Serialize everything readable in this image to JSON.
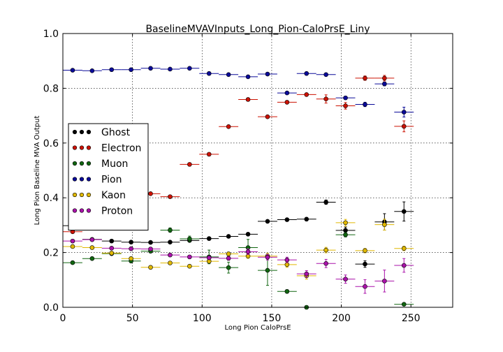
{
  "chart_data": {
    "type": "scatter",
    "title": "BaselineMVAVInputs_Long_Pion-CaloPrsE_Liny",
    "xlabel": "Long Pion CaloPrsE",
    "ylabel": "Long Pion Baseline MVA Output",
    "xlim": [
      0,
      280
    ],
    "ylim": [
      0,
      1
    ],
    "x_ticks": [
      "0",
      "50",
      "100",
      "150",
      "200",
      "250"
    ],
    "x_tick_values": [
      0,
      50,
      100,
      150,
      200,
      250
    ],
    "y_ticks": [
      "0.0",
      "0.2",
      "0.4",
      "0.6",
      "0.8",
      "1.0"
    ],
    "y_tick_values": [
      0,
      0.2,
      0.4,
      0.6,
      0.8,
      1.0
    ],
    "grid": true,
    "legend_position": "center-left",
    "x_bin_half_width": 7,
    "series": [
      {
        "name": "Ghost",
        "color": "#000000",
        "points": [
          {
            "x": 7,
            "y": 0.298,
            "err": 0.004
          },
          {
            "x": 21,
            "y": 0.248,
            "err": 0.003
          },
          {
            "x": 35,
            "y": 0.242,
            "err": 0.003
          },
          {
            "x": 49,
            "y": 0.238,
            "err": 0.003
          },
          {
            "x": 63,
            "y": 0.237,
            "err": 0.003
          },
          {
            "x": 77,
            "y": 0.238,
            "err": 0.003
          },
          {
            "x": 91,
            "y": 0.244,
            "err": 0.003
          },
          {
            "x": 105,
            "y": 0.251,
            "err": 0.003
          },
          {
            "x": 119,
            "y": 0.259,
            "err": 0.003
          },
          {
            "x": 133,
            "y": 0.267,
            "err": 0.004
          },
          {
            "x": 147,
            "y": 0.314,
            "err": 0.004
          },
          {
            "x": 161,
            "y": 0.32,
            "err": 0.005
          },
          {
            "x": 175,
            "y": 0.322,
            "err": 0.006
          },
          {
            "x": 189,
            "y": 0.384,
            "err": 0.008
          },
          {
            "x": 203,
            "y": 0.281,
            "err": 0.012
          },
          {
            "x": 217,
            "y": 0.158,
            "err": 0.012
          },
          {
            "x": 231,
            "y": 0.312,
            "err": 0.03
          },
          {
            "x": 245,
            "y": 0.35,
            "err": 0.035
          }
        ]
      },
      {
        "name": "Electron",
        "color": "#cc1100",
        "points": [
          {
            "x": 7,
            "y": 0.276,
            "err": 0.004
          },
          {
            "x": 21,
            "y": 0.317,
            "err": 0.004
          },
          {
            "x": 35,
            "y": 0.358,
            "err": 0.004
          },
          {
            "x": 49,
            "y": 0.388,
            "err": 0.004
          },
          {
            "x": 63,
            "y": 0.415,
            "err": 0.004
          },
          {
            "x": 77,
            "y": 0.404,
            "err": 0.004
          },
          {
            "x": 91,
            "y": 0.522,
            "err": 0.004
          },
          {
            "x": 105,
            "y": 0.559,
            "err": 0.004
          },
          {
            "x": 119,
            "y": 0.66,
            "err": 0.004
          },
          {
            "x": 133,
            "y": 0.759,
            "err": 0.004
          },
          {
            "x": 147,
            "y": 0.696,
            "err": 0.004
          },
          {
            "x": 161,
            "y": 0.749,
            "err": 0.005
          },
          {
            "x": 175,
            "y": 0.777,
            "err": 0.005
          },
          {
            "x": 189,
            "y": 0.761,
            "err": 0.015
          },
          {
            "x": 203,
            "y": 0.736,
            "err": 0.012
          },
          {
            "x": 217,
            "y": 0.837,
            "err": 0.008
          },
          {
            "x": 231,
            "y": 0.837,
            "err": 0.01
          },
          {
            "x": 245,
            "y": 0.661,
            "err": 0.02
          }
        ]
      },
      {
        "name": "Muon",
        "color": "#116611",
        "points": [
          {
            "x": 7,
            "y": 0.163,
            "err": 0.004
          },
          {
            "x": 21,
            "y": 0.178,
            "err": 0.004
          },
          {
            "x": 35,
            "y": 0.196,
            "err": 0.005
          },
          {
            "x": 49,
            "y": 0.169,
            "err": 0.005
          },
          {
            "x": 63,
            "y": 0.205,
            "err": 0.006
          },
          {
            "x": 77,
            "y": 0.282,
            "err": 0.008
          },
          {
            "x": 91,
            "y": 0.25,
            "err": 0.01
          },
          {
            "x": 105,
            "y": 0.184,
            "err": 0.025
          },
          {
            "x": 119,
            "y": 0.145,
            "err": 0.02
          },
          {
            "x": 133,
            "y": 0.218,
            "err": 0.03
          },
          {
            "x": 147,
            "y": 0.135,
            "err": 0.055
          },
          {
            "x": 161,
            "y": 0.058,
            "err": 0.006
          },
          {
            "x": 175,
            "y": 0.0,
            "err": 0.004
          },
          {
            "x": 203,
            "y": 0.265,
            "err": 0.008
          },
          {
            "x": 245,
            "y": 0.011,
            "err": 0.004
          }
        ]
      },
      {
        "name": "Pion",
        "color": "#0a0a99",
        "points": [
          {
            "x": 7,
            "y": 0.866,
            "err": 0.003
          },
          {
            "x": 21,
            "y": 0.864,
            "err": 0.003
          },
          {
            "x": 35,
            "y": 0.868,
            "err": 0.003
          },
          {
            "x": 49,
            "y": 0.868,
            "err": 0.003
          },
          {
            "x": 63,
            "y": 0.873,
            "err": 0.003
          },
          {
            "x": 77,
            "y": 0.87,
            "err": 0.003
          },
          {
            "x": 91,
            "y": 0.873,
            "err": 0.003
          },
          {
            "x": 105,
            "y": 0.854,
            "err": 0.003
          },
          {
            "x": 119,
            "y": 0.85,
            "err": 0.003
          },
          {
            "x": 133,
            "y": 0.842,
            "err": 0.003
          },
          {
            "x": 147,
            "y": 0.852,
            "err": 0.003
          },
          {
            "x": 161,
            "y": 0.783,
            "err": 0.004
          },
          {
            "x": 175,
            "y": 0.854,
            "err": 0.004
          },
          {
            "x": 189,
            "y": 0.85,
            "err": 0.004
          },
          {
            "x": 203,
            "y": 0.765,
            "err": 0.005
          },
          {
            "x": 217,
            "y": 0.741,
            "err": 0.008
          },
          {
            "x": 231,
            "y": 0.816,
            "err": 0.007
          },
          {
            "x": 245,
            "y": 0.713,
            "err": 0.018
          }
        ]
      },
      {
        "name": "Kaon",
        "color": "#e0b800",
        "points": [
          {
            "x": 7,
            "y": 0.222,
            "err": 0.004
          },
          {
            "x": 21,
            "y": 0.218,
            "err": 0.004
          },
          {
            "x": 35,
            "y": 0.198,
            "err": 0.004
          },
          {
            "x": 49,
            "y": 0.178,
            "err": 0.004
          },
          {
            "x": 63,
            "y": 0.146,
            "err": 0.005
          },
          {
            "x": 77,
            "y": 0.162,
            "err": 0.005
          },
          {
            "x": 91,
            "y": 0.15,
            "err": 0.005
          },
          {
            "x": 105,
            "y": 0.168,
            "err": 0.006
          },
          {
            "x": 119,
            "y": 0.195,
            "err": 0.007
          },
          {
            "x": 133,
            "y": 0.187,
            "err": 0.008
          },
          {
            "x": 147,
            "y": 0.187,
            "err": 0.01
          },
          {
            "x": 161,
            "y": 0.156,
            "err": 0.01
          },
          {
            "x": 175,
            "y": 0.115,
            "err": 0.012
          },
          {
            "x": 189,
            "y": 0.209,
            "err": 0.01
          },
          {
            "x": 203,
            "y": 0.309,
            "err": 0.012
          },
          {
            "x": 217,
            "y": 0.207,
            "err": 0.008
          },
          {
            "x": 231,
            "y": 0.302,
            "err": 0.02
          },
          {
            "x": 245,
            "y": 0.215,
            "err": 0.008
          }
        ]
      },
      {
        "name": "Proton",
        "color": "#aa11aa",
        "points": [
          {
            "x": 7,
            "y": 0.242,
            "err": 0.004
          },
          {
            "x": 21,
            "y": 0.247,
            "err": 0.004
          },
          {
            "x": 35,
            "y": 0.216,
            "err": 0.004
          },
          {
            "x": 49,
            "y": 0.214,
            "err": 0.004
          },
          {
            "x": 63,
            "y": 0.213,
            "err": 0.005
          },
          {
            "x": 77,
            "y": 0.191,
            "err": 0.005
          },
          {
            "x": 91,
            "y": 0.184,
            "err": 0.005
          },
          {
            "x": 105,
            "y": 0.181,
            "err": 0.006
          },
          {
            "x": 119,
            "y": 0.179,
            "err": 0.007
          },
          {
            "x": 133,
            "y": 0.203,
            "err": 0.01
          },
          {
            "x": 147,
            "y": 0.183,
            "err": 0.01
          },
          {
            "x": 161,
            "y": 0.173,
            "err": 0.01
          },
          {
            "x": 175,
            "y": 0.122,
            "err": 0.012
          },
          {
            "x": 189,
            "y": 0.16,
            "err": 0.015
          },
          {
            "x": 203,
            "y": 0.103,
            "err": 0.015
          },
          {
            "x": 217,
            "y": 0.076,
            "err": 0.025
          },
          {
            "x": 231,
            "y": 0.096,
            "err": 0.04
          },
          {
            "x": 245,
            "y": 0.153,
            "err": 0.025
          }
        ]
      }
    ]
  }
}
